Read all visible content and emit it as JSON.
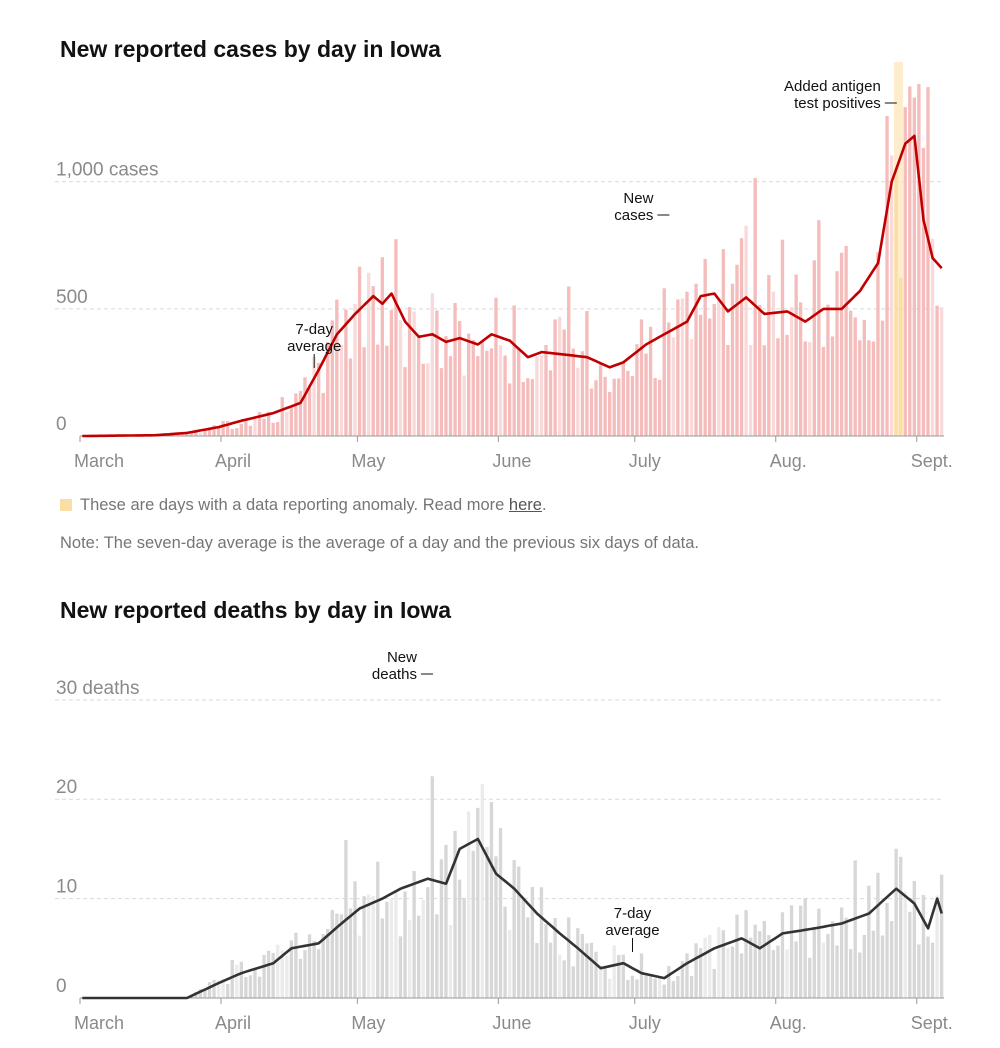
{
  "cases": {
    "title": "New reported cases by day in Iowa",
    "legend_text": "These are days with a data reporting anomaly. Read more ",
    "legend_link": "here",
    "legend_end": ".",
    "note": "Note: The seven-day average is the average of a day and the previous six days of data.",
    "colors": {
      "bar": "#f5bcbc",
      "bar_light": "#f9dada",
      "line": "#c00000",
      "anomaly": "#fbdea3"
    }
  },
  "deaths": {
    "title": "New reported deaths by day in Iowa",
    "colors": {
      "bar": "#d7d7d7",
      "bar_light": "#ebebeb",
      "line": "#333333"
    }
  },
  "chart_data": [
    {
      "type": "bar",
      "title": "New reported cases by day in Iowa",
      "date_range": [
        "2020-03-01",
        "2020-09-06"
      ],
      "x_tick_labels": [
        {
          "label": "March",
          "date": "2020-03-01"
        },
        {
          "label": "April",
          "date": "2020-04-01"
        },
        {
          "label": "May",
          "date": "2020-05-01"
        },
        {
          "label": "June",
          "date": "2020-06-01"
        },
        {
          "label": "July",
          "date": "2020-07-01"
        },
        {
          "label": "Aug.",
          "date": "2020-08-01"
        },
        {
          "label": "Sept.",
          "date": "2020-09-01"
        }
      ],
      "y_ticks": [
        {
          "value": 0,
          "label": "0"
        },
        {
          "value": 500,
          "label": "500"
        },
        {
          "value": 1000,
          "label": "1,000 cases"
        }
      ],
      "ylim": [
        0,
        1400
      ],
      "gridlines": true,
      "series": [
        {
          "name": "New cases",
          "kind": "bar"
        },
        {
          "name": "7-day average",
          "kind": "line"
        }
      ],
      "anomaly_dates": [
        "2020-08-27",
        "2020-08-28"
      ],
      "annotations": [
        {
          "text": [
            "7-day",
            "average"
          ],
          "date": "2020-04-21"
        },
        {
          "text": [
            "New",
            "cases"
          ],
          "date": "2020-07-09"
        },
        {
          "text": [
            "Added antigen",
            "test positives"
          ],
          "date": "2020-08-28"
        }
      ],
      "avg_keyframes": [
        [
          "2020-03-01",
          0
        ],
        [
          "2020-03-17",
          3
        ],
        [
          "2020-03-24",
          12
        ],
        [
          "2020-03-31",
          35
        ],
        [
          "2020-04-05",
          60
        ],
        [
          "2020-04-12",
          90
        ],
        [
          "2020-04-18",
          130
        ],
        [
          "2020-04-22",
          260
        ],
        [
          "2020-04-26",
          400
        ],
        [
          "2020-04-30",
          480
        ],
        [
          "2020-05-04",
          550
        ],
        [
          "2020-05-06",
          520
        ],
        [
          "2020-05-08",
          560
        ],
        [
          "2020-05-11",
          450
        ],
        [
          "2020-05-14",
          390
        ],
        [
          "2020-05-17",
          400
        ],
        [
          "2020-05-20",
          370
        ],
        [
          "2020-05-23",
          385
        ],
        [
          "2020-05-27",
          360
        ],
        [
          "2020-05-30",
          400
        ],
        [
          "2020-06-03",
          375
        ],
        [
          "2020-06-07",
          310
        ],
        [
          "2020-06-10",
          330
        ],
        [
          "2020-06-15",
          320
        ],
        [
          "2020-06-20",
          310
        ],
        [
          "2020-06-25",
          270
        ],
        [
          "2020-06-28",
          290
        ],
        [
          "2020-07-03",
          360
        ],
        [
          "2020-07-08",
          410
        ],
        [
          "2020-07-12",
          450
        ],
        [
          "2020-07-15",
          550
        ],
        [
          "2020-07-18",
          560
        ],
        [
          "2020-07-21",
          490
        ],
        [
          "2020-07-25",
          545
        ],
        [
          "2020-07-29",
          480
        ],
        [
          "2020-08-03",
          490
        ],
        [
          "2020-08-07",
          450
        ],
        [
          "2020-08-11",
          500
        ],
        [
          "2020-08-15",
          500
        ],
        [
          "2020-08-19",
          570
        ],
        [
          "2020-08-23",
          680
        ],
        [
          "2020-08-26",
          1000
        ],
        [
          "2020-08-29",
          1150
        ],
        [
          "2020-08-31",
          1180
        ],
        [
          "2020-09-02",
          850
        ],
        [
          "2020-09-04",
          700
        ],
        [
          "2020-09-06",
          660
        ]
      ]
    },
    {
      "type": "bar",
      "title": "New reported deaths by day in Iowa",
      "date_range": [
        "2020-03-01",
        "2020-09-06"
      ],
      "x_tick_labels": [
        {
          "label": "March",
          "date": "2020-03-01"
        },
        {
          "label": "April",
          "date": "2020-04-01"
        },
        {
          "label": "May",
          "date": "2020-05-01"
        },
        {
          "label": "June",
          "date": "2020-06-01"
        },
        {
          "label": "July",
          "date": "2020-07-01"
        },
        {
          "label": "Aug.",
          "date": "2020-08-01"
        },
        {
          "label": "Sept.",
          "date": "2020-09-01"
        }
      ],
      "y_ticks": [
        {
          "value": 0,
          "label": "0"
        },
        {
          "value": 10,
          "label": "10"
        },
        {
          "value": 20,
          "label": "20"
        },
        {
          "value": 30,
          "label": "30 deaths"
        }
      ],
      "ylim": [
        0,
        33
      ],
      "gridlines": true,
      "series": [
        {
          "name": "New deaths",
          "kind": "bar"
        },
        {
          "name": "7-day average",
          "kind": "line"
        }
      ],
      "annotations": [
        {
          "text": [
            "New",
            "deaths"
          ],
          "date": "2020-05-18"
        },
        {
          "text": [
            "7-day",
            "average"
          ],
          "date": "2020-06-30"
        }
      ],
      "avg_keyframes": [
        [
          "2020-03-01",
          0
        ],
        [
          "2020-03-24",
          0
        ],
        [
          "2020-03-31",
          1.5
        ],
        [
          "2020-04-05",
          2.5
        ],
        [
          "2020-04-12",
          3.5
        ],
        [
          "2020-04-16",
          5
        ],
        [
          "2020-04-22",
          5.5
        ],
        [
          "2020-04-27",
          7.5
        ],
        [
          "2020-05-01",
          9
        ],
        [
          "2020-05-06",
          10
        ],
        [
          "2020-05-10",
          11
        ],
        [
          "2020-05-16",
          12
        ],
        [
          "2020-05-20",
          11.5
        ],
        [
          "2020-05-23",
          15
        ],
        [
          "2020-05-27",
          16
        ],
        [
          "2020-05-31",
          12.5
        ],
        [
          "2020-06-04",
          11
        ],
        [
          "2020-06-09",
          8.5
        ],
        [
          "2020-06-14",
          6.5
        ],
        [
          "2020-06-18",
          5
        ],
        [
          "2020-06-23",
          3
        ],
        [
          "2020-06-28",
          3.5
        ],
        [
          "2020-07-02",
          2.5
        ],
        [
          "2020-07-07",
          2
        ],
        [
          "2020-07-12",
          3.5
        ],
        [
          "2020-07-18",
          5
        ],
        [
          "2020-07-24",
          6
        ],
        [
          "2020-07-28",
          5
        ],
        [
          "2020-08-02",
          6.5
        ],
        [
          "2020-08-09",
          7
        ],
        [
          "2020-08-15",
          7.5
        ],
        [
          "2020-08-21",
          8.5
        ],
        [
          "2020-08-27",
          11
        ],
        [
          "2020-08-31",
          9.5
        ],
        [
          "2020-09-03",
          7
        ],
        [
          "2020-09-05",
          10
        ],
        [
          "2020-09-06",
          8.5
        ]
      ]
    }
  ]
}
